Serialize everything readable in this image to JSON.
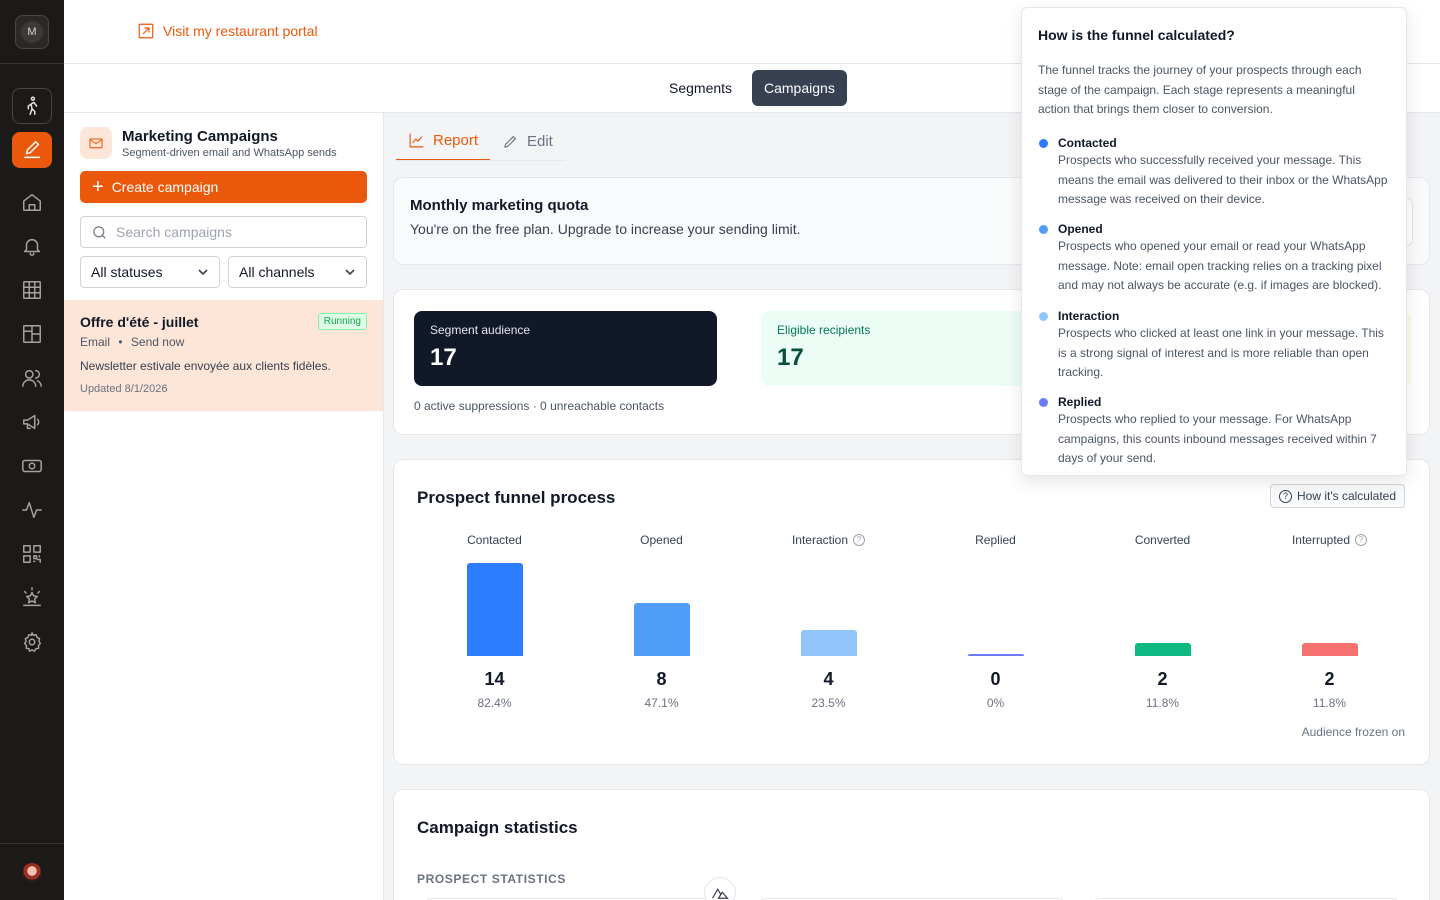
{
  "user_initial": "M",
  "topbar": {
    "portal_link": "Visit my restaurant portal"
  },
  "subnav": {
    "tabs": [
      "Segments",
      "Campaigns"
    ],
    "active": "Campaigns"
  },
  "sidebar": {
    "icons": [
      "walk-icon",
      "edit-icon",
      "home-icon",
      "bell-icon",
      "grid-icon",
      "layout-icon",
      "users-icon",
      "megaphone-icon",
      "money-icon",
      "activity-icon",
      "qr-code-icon",
      "star-icon",
      "settings-icon"
    ],
    "active": "edit-icon"
  },
  "left_panel": {
    "title": "Marketing Campaigns",
    "subtitle": "Segment-driven email and WhatsApp sends",
    "create_label": "Create campaign",
    "search_placeholder": "Search campaigns",
    "status_filter": "All statuses",
    "channel_filter": "All channels",
    "campaigns": [
      {
        "title": "Offre d'été - juillet",
        "status": "Running",
        "channel": "Email",
        "separator": "•",
        "schedule": "Send now",
        "description": "Newsletter estivale envoyée aux clients fidèles.",
        "updated": "Updated 8/1/2026"
      }
    ]
  },
  "content_tabs": {
    "report": "Report",
    "edit": "Edit"
  },
  "quota": {
    "title": "Monthly marketing quota",
    "description": "You're on the free plan. Upgrade to increase your sending limit."
  },
  "audience": {
    "segment_label": "Segment audience",
    "segment_value": "17",
    "eligible_label": "Eligible recipients",
    "eligible_value": "17",
    "footer": "0 active suppressions · 0 unreachable contacts"
  },
  "funnel": {
    "title": "Prospect funnel process",
    "how_button": "How it's calculated",
    "frozen_note": "Audience frozen on",
    "stages": [
      {
        "label": "Contacted",
        "value": "14",
        "percent": "82.4%",
        "fraction": 0.824,
        "help": false,
        "color": "#2b7cff"
      },
      {
        "label": "Opened",
        "value": "8",
        "percent": "47.1%",
        "fraction": 0.471,
        "help": false,
        "color": "#4f9cf9"
      },
      {
        "label": "Interaction",
        "value": "4",
        "percent": "23.5%",
        "fraction": 0.235,
        "help": true,
        "color": "#93c5fd"
      },
      {
        "label": "Replied",
        "value": "0",
        "percent": "0%",
        "fraction": 0,
        "help": false,
        "color": "#6b7cf6"
      },
      {
        "label": "Converted",
        "value": "2",
        "percent": "11.8%",
        "fraction": 0.118,
        "help": false,
        "color": "#10b981"
      },
      {
        "label": "Interrupted",
        "value": "2",
        "percent": "11.8%",
        "fraction": 0.118,
        "help": true,
        "color": "#f87171"
      }
    ]
  },
  "stats": {
    "title": "Campaign statistics",
    "section": "PROSPECT STATISTICS"
  },
  "popover": {
    "title": "How is the funnel calculated?",
    "intro": "The funnel tracks the journey of your prospects through each stage of the campaign. Each stage represents a meaningful action that brings them closer to conversion.",
    "items": [
      {
        "name": "Contacted",
        "color": "#2b7cff",
        "text": "Prospects who successfully received your message. This means the email was delivered to their inbox or the WhatsApp message was received on their device."
      },
      {
        "name": "Opened",
        "color": "#4f9cf9",
        "text": "Prospects who opened your email or read your WhatsApp message. Note: email open tracking relies on a tracking pixel and may not always be accurate (e.g. if images are blocked)."
      },
      {
        "name": "Interaction",
        "color": "#93c5fd",
        "text": "Prospects who clicked at least one link in your message. This is a strong signal of interest and is more reliable than open tracking."
      },
      {
        "name": "Replied",
        "color": "#6b7cf6",
        "text": "Prospects who replied to your message. For WhatsApp campaigns, this counts inbound messages received within 7 days of your send."
      }
    ]
  }
}
